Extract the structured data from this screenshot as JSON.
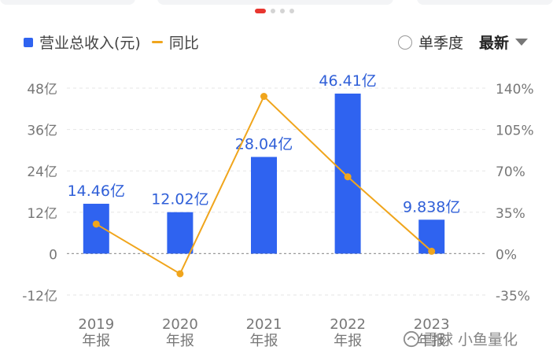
{
  "legend": {
    "bar_label": "营业总收入(元)",
    "line_label": "同比"
  },
  "controls": {
    "single_quarter_label": "单季度",
    "period_selected": "最新"
  },
  "watermark": {
    "text": "雪球 小鱼量化"
  },
  "colors": {
    "bar": "#2f63f0",
    "line": "#f0a51c",
    "bar_label": "#2f5fd8",
    "axis_text": "#777777",
    "grid": "#e6e6e6",
    "active_dot": "#e8362f"
  },
  "chart_data": {
    "type": "bar",
    "categories": [
      "2019\n年报",
      "2020\n年报",
      "2021\n年报",
      "2022\n年报",
      "2023\n年报"
    ],
    "series": [
      {
        "name": "营业总收入(元)",
        "type": "bar",
        "axis": "left",
        "values": [
          14.46,
          12.02,
          28.04,
          46.41,
          9.838
        ],
        "data_labels": [
          "14.46亿",
          "12.02亿",
          "28.04亿",
          "46.41亿",
          "9.838亿"
        ]
      },
      {
        "name": "同比",
        "type": "line",
        "axis": "right",
        "values": [
          25,
          -17,
          133,
          65,
          2
        ]
      }
    ],
    "y_left": {
      "range": [
        -12,
        48
      ],
      "ticks": [
        -12,
        0,
        12,
        24,
        36,
        48
      ],
      "tick_labels": [
        "-12亿",
        "0",
        "12亿",
        "24亿",
        "36亿",
        "48亿"
      ]
    },
    "y_right": {
      "range": [
        -35,
        140
      ],
      "ticks": [
        -35,
        0,
        35,
        70,
        105,
        140
      ],
      "tick_labels": [
        "-35%",
        "0%",
        "35%",
        "70%",
        "105%",
        "140%"
      ]
    },
    "grid": true,
    "legend_position": "top-left"
  }
}
